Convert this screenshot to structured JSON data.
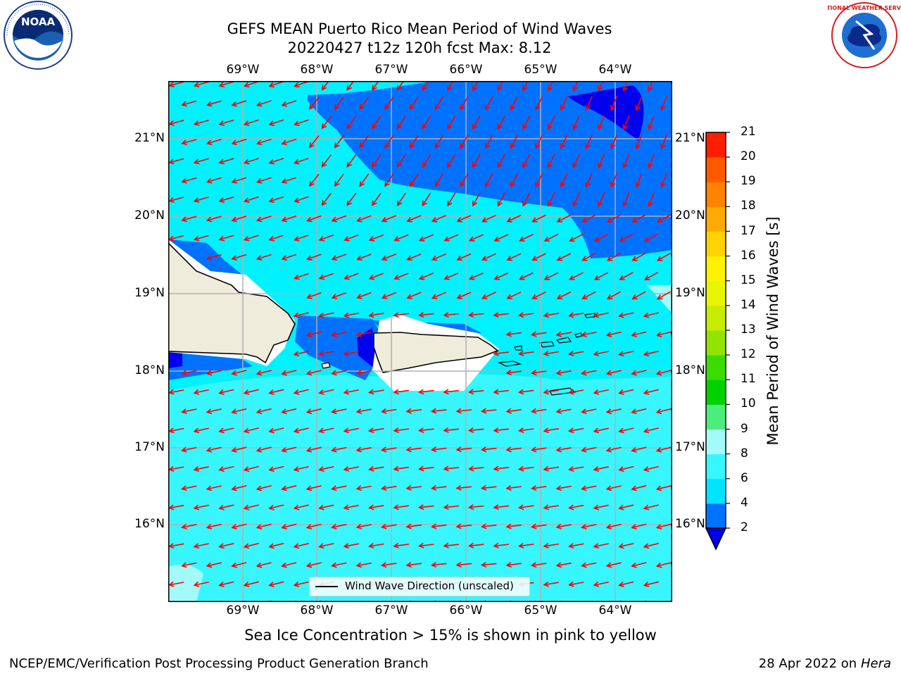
{
  "title": {
    "line1": "GEFS MEAN Puerto Rico Mean Period of Wind Waves",
    "line2": "20220427 t12z 120h fcst   Max: 8.12"
  },
  "map": {
    "lon_labels": [
      "69°W",
      "68°W",
      "67°W",
      "66°W",
      "65°W",
      "64°W"
    ],
    "lat_labels": [
      "21°N",
      "20°N",
      "19°N",
      "18°N",
      "17°N",
      "16°N"
    ],
    "legend_label": "Wind Wave Direction (unscaled)",
    "arrow_color": "#ff0000",
    "land_color": "#efecdc"
  },
  "colorbar": {
    "label": "Mean Period of Wind Waves [s]",
    "ticks": [
      "2",
      "4",
      "6",
      "8",
      "9",
      "10",
      "11",
      "12",
      "13",
      "14",
      "15",
      "16",
      "17",
      "18",
      "19",
      "20",
      "21"
    ],
    "colors": [
      "#0072ff",
      "#00e5ff",
      "#38f6ff",
      "#a2fbf8",
      "#4ced7a",
      "#00d200",
      "#3cdc00",
      "#92e400",
      "#c8ec00",
      "#e8f500",
      "#fff200",
      "#ffd200",
      "#ffaa00",
      "#ff8200",
      "#ff5a00",
      "#ff1e00"
    ],
    "under_color": "#0000ee"
  },
  "note": "Sea Ice Concentration > 15% is shown in pink to yellow",
  "footer": {
    "left": "NCEP/EMC/Verification Post Processing Product Generation Branch",
    "date": "28 Apr 2022 on ",
    "host": "Hera"
  },
  "logos": {
    "noaa": "NOAA",
    "nws": "NATIONAL WEATHER SERVICE"
  }
}
